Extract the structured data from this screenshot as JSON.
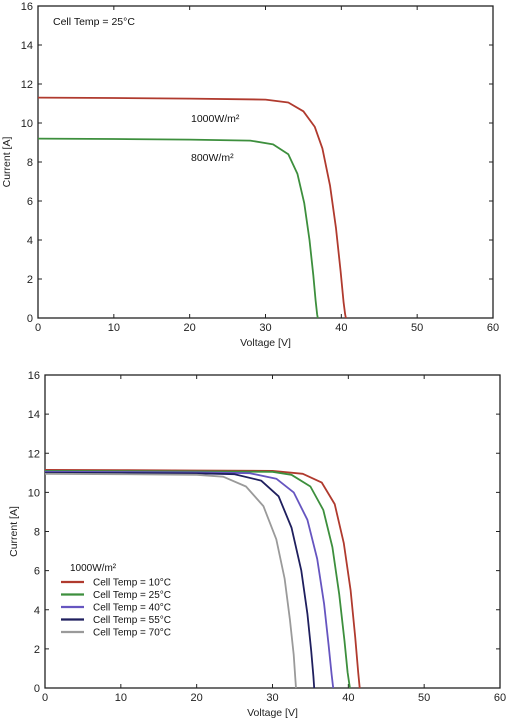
{
  "chart_data": [
    {
      "type": "line",
      "xlabel": "Voltage [V]",
      "ylabel": "Current [A]",
      "xlim": [
        0,
        60
      ],
      "ylim": [
        0,
        16
      ],
      "x_ticks": [
        0,
        10,
        20,
        30,
        40,
        50,
        60
      ],
      "y_ticks": [
        0,
        2,
        4,
        6,
        8,
        10,
        12,
        14,
        16
      ],
      "annotation": "Cell Temp = 25°C",
      "series": [
        {
          "name": "1000W/m²",
          "color": "#b03a2e",
          "x": [
            0,
            10,
            20,
            30,
            33,
            35,
            36.5,
            37.5,
            38.5,
            39.3,
            39.9,
            40.3,
            40.5,
            40.6
          ],
          "y": [
            11.3,
            11.28,
            11.25,
            11.2,
            11.05,
            10.6,
            9.8,
            8.7,
            6.8,
            4.6,
            2.4,
            0.8,
            0.2,
            0
          ]
        },
        {
          "name": "800W/m²",
          "color": "#3d8f3d",
          "x": [
            0,
            10,
            20,
            28,
            31,
            33,
            34.2,
            35.1,
            35.8,
            36.3,
            36.6,
            36.8,
            36.9
          ],
          "y": [
            9.2,
            9.18,
            9.15,
            9.1,
            8.9,
            8.4,
            7.4,
            5.9,
            4.0,
            2.2,
            0.9,
            0.2,
            0
          ]
        }
      ]
    },
    {
      "type": "line",
      "xlabel": "Voltage [V]",
      "ylabel": "Current [A]",
      "xlim": [
        0,
        60
      ],
      "ylim": [
        0,
        16
      ],
      "x_ticks": [
        0,
        10,
        20,
        30,
        40,
        50,
        60
      ],
      "y_ticks": [
        0,
        2,
        4,
        6,
        8,
        10,
        12,
        14,
        16
      ],
      "legend_title": "1000W/m²",
      "legend_position": "lower-left",
      "series": [
        {
          "name": "Cell Temp = 10°C",
          "color": "#b03a2e",
          "x": [
            0,
            10,
            20,
            30,
            34,
            36.5,
            38.2,
            39.4,
            40.3,
            40.9,
            41.3,
            41.5
          ],
          "y": [
            11.15,
            11.14,
            11.12,
            11.1,
            10.95,
            10.5,
            9.4,
            7.4,
            5.0,
            2.6,
            0.8,
            0
          ]
        },
        {
          "name": "Cell Temp = 25°C",
          "color": "#3d8f3d",
          "x": [
            0,
            10,
            20,
            30,
            32.5,
            35,
            36.7,
            37.9,
            38.8,
            39.5,
            39.9,
            40.2
          ],
          "y": [
            11.1,
            11.09,
            11.07,
            11.05,
            10.9,
            10.3,
            9.1,
            7.2,
            4.8,
            2.4,
            0.8,
            0
          ]
        },
        {
          "name": "Cell Temp = 40°C",
          "color": "#6655c0",
          "x": [
            0,
            10,
            20,
            27,
            30.5,
            32.8,
            34.6,
            35.9,
            36.8,
            37.4,
            37.8,
            38.0
          ],
          "y": [
            11.05,
            11.04,
            11.02,
            10.98,
            10.7,
            10.0,
            8.6,
            6.6,
            4.3,
            2.2,
            0.7,
            0
          ]
        },
        {
          "name": "Cell Temp = 55°C",
          "color": "#1f1f5e",
          "x": [
            0,
            10,
            20,
            25,
            28.5,
            30.8,
            32.5,
            33.8,
            34.6,
            35.1,
            35.4,
            35.5
          ],
          "y": [
            11.0,
            10.99,
            10.97,
            10.93,
            10.6,
            9.8,
            8.2,
            6.0,
            3.8,
            1.9,
            0.6,
            0
          ]
        },
        {
          "name": "Cell Temp = 70°C",
          "color": "#9a9a9a",
          "x": [
            0,
            10,
            20,
            23.5,
            26.5,
            28.8,
            30.5,
            31.6,
            32.3,
            32.8,
            33.0,
            33.1
          ],
          "y": [
            10.95,
            10.93,
            10.9,
            10.8,
            10.3,
            9.3,
            7.6,
            5.6,
            3.5,
            1.7,
            0.5,
            0
          ]
        }
      ]
    }
  ]
}
